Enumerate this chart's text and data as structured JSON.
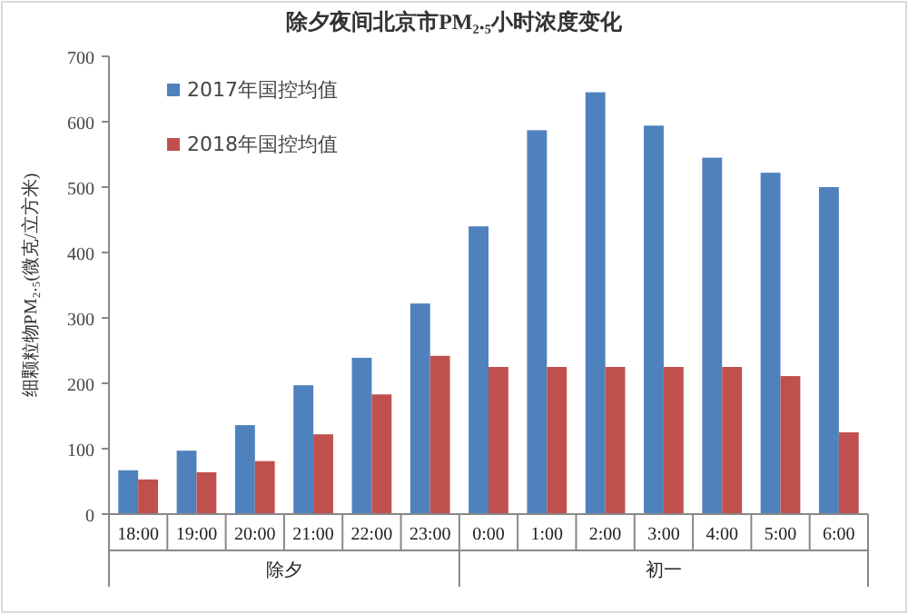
{
  "chart_data": {
    "type": "bar",
    "title": "除夕夜间北京市PM₂.₅小时浓度变化",
    "ylabel": "细颗粒物PM₂.₅(微克/立方米)",
    "categories": [
      "18:00",
      "19:00",
      "20:00",
      "21:00",
      "22:00",
      "23:00",
      "0:00",
      "1:00",
      "2:00",
      "3:00",
      "4:00",
      "5:00",
      "6:00"
    ],
    "series": [
      {
        "name": "2017年国控均值",
        "color": "#4f81bd",
        "values": [
          67,
          97,
          136,
          197,
          239,
          322,
          440,
          587,
          645,
          594,
          545,
          522,
          500
        ]
      },
      {
        "name": "2018年国控均值",
        "color": "#c0504d",
        "values": [
          53,
          64,
          81,
          122,
          183,
          242,
          225,
          225,
          225,
          225,
          225,
          211,
          125
        ]
      }
    ],
    "ylim": [
      0,
      700
    ],
    "yticks": [
      0,
      100,
      200,
      300,
      400,
      500,
      600,
      700
    ],
    "annotations": [
      "除夕",
      "初一"
    ],
    "legend": "top left",
    "grid": false
  }
}
